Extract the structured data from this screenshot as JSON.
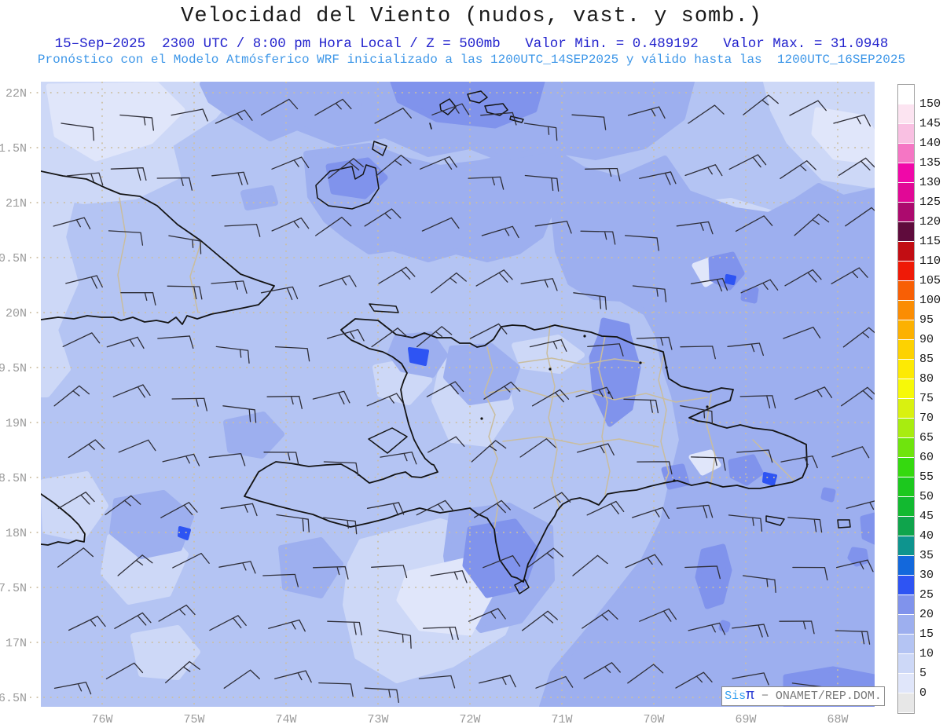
{
  "header": {
    "title": "Velocidad del Viento (nudos, vast. y somb.)",
    "subtitle1": "15–Sep–2025  2300 UTC / 8:00 pm Hora Local / Z = 500mb   Valor Min. = 0.489192   Valor Max. = 31.0948",
    "subtitle2": "Pronóstico con el Modelo Atmósferico WRF inicializado a las 1200UTC_14SEP2025 y válido hasta las  1200UTC_16SEP2025",
    "title_color": "#1a1a1a",
    "subtitle1_color": "#2323cd",
    "subtitle2_color": "#3e97e8"
  },
  "forecast": {
    "date": "15–Sep–2025",
    "time_utc": "2300 UTC",
    "time_local": "8:00 pm Hora Local",
    "level": "500mb",
    "valor_min": 0.489192,
    "valor_max": 31.0948,
    "model": "WRF",
    "initialized": "1200UTC_14SEP2025",
    "valid_until": "1200UTC_16SEP2025",
    "units": "nudos"
  },
  "map": {
    "y_axis_labels": [
      "22N",
      "1.5N",
      "21N",
      "0.5N",
      "20N",
      "9.5N",
      "19N",
      "8.5N",
      "18N",
      "7.5N",
      "17N",
      "6.5N"
    ],
    "x_axis_labels": [
      "76W",
      "75W",
      "74W",
      "73W",
      "72W",
      "71W",
      "70W",
      "69W",
      "68W"
    ],
    "axis_label_color": "#9a9a9a",
    "grid_color": "#cbbfa2",
    "coastline_color": "#141414",
    "province_border_color": "#c9bd9e",
    "wind_barbs": {
      "rows": 11,
      "cols": 16,
      "color": "#2e2e38",
      "speed_range": "5-20 nudos",
      "direction": "del este-noreste"
    }
  },
  "colorbar": {
    "labels": [
      "0",
      "5",
      "10",
      "15",
      "20",
      "25",
      "30",
      "35",
      "40",
      "45",
      "50",
      "55",
      "60",
      "65",
      "70",
      "75",
      "80",
      "85",
      "90",
      "95",
      "100",
      "105",
      "110",
      "115",
      "120",
      "125",
      "130",
      "135",
      "140",
      "145",
      "150"
    ],
    "segments_bottom_to_top": [
      "#e7e7e7",
      "#e0e6fa",
      "#cdd8f7",
      "#b4c4f3",
      "#9dafef",
      "#8093ec",
      "#2e54f3",
      "#1368dc",
      "#0e948e",
      "#0fa44c",
      "#12b930",
      "#1cc81e",
      "#35d90f",
      "#6fe40d",
      "#a8ec10",
      "#d9f110",
      "#f7f908",
      "#fdea04",
      "#fdd201",
      "#fcb101",
      "#fb8d03",
      "#f85f05",
      "#ef1a07",
      "#c20d13",
      "#5f0b3c",
      "#ac0a6e",
      "#e10896",
      "#f008a8",
      "#f576c4",
      "#f9c0e2",
      "#fce4f1",
      "#ffffff"
    ]
  },
  "watermark": {
    "prefix": "Sis",
    "pi": "π",
    "suffix": " − ONAMET/REP.DOM.",
    "prefix_color": "#35a0f0",
    "pi_color": "#2d3fd4",
    "suffix_color": "#7a7a7a"
  },
  "chart_data": {
    "type": "heatmap",
    "variable": "velocidad del viento (nudos) con barbas y sombreado",
    "level": "500mb",
    "value_min": 0.489192,
    "value_max": 31.0948,
    "lat_range_labels": [
      "6.5N",
      "22N"
    ],
    "lon_range_labels": [
      "76W",
      "68W"
    ],
    "scale_values": [
      0,
      5,
      10,
      15,
      20,
      25,
      30,
      35,
      40,
      45,
      50,
      55,
      60,
      65,
      70,
      75,
      80,
      85,
      90,
      95,
      100,
      105,
      110,
      115,
      120,
      125,
      130,
      135,
      140,
      145,
      150
    ],
    "notes": "Campo mayormente 5-25 nudos (azules); máximos locales ~25-31 nudos cerca de la costa norte de Haití y al sureste de República Dominicana"
  }
}
